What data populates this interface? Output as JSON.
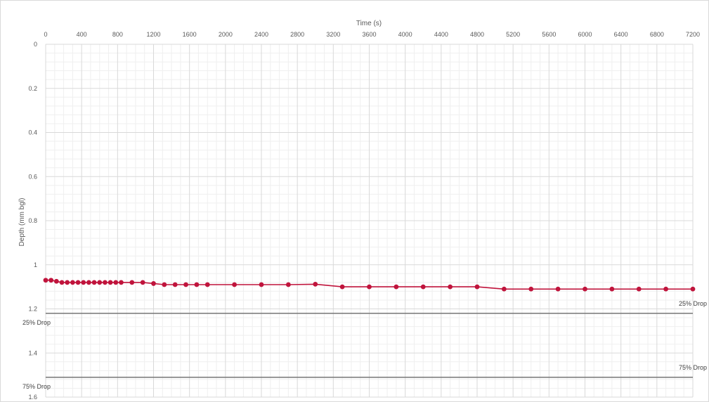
{
  "chart_data": {
    "type": "line",
    "title": "",
    "xlabel": "Time (s)",
    "ylabel": "Depth (mm bgl)",
    "x_axis_position": "top",
    "y_axis_reversed": true,
    "xlim": [
      0,
      7200
    ],
    "ylim": [
      0,
      1.6
    ],
    "x_ticks": [
      "0",
      "400",
      "800",
      "1200",
      "1600",
      "2000",
      "2400",
      "2800",
      "3200",
      "3600",
      "4000",
      "4400",
      "4800",
      "5200",
      "5600",
      "6000",
      "6400",
      "6800",
      "7200"
    ],
    "y_ticks": [
      "0",
      "0.2",
      "0.4",
      "0.6",
      "0.8",
      "1",
      "1.2",
      "1.4",
      "1.6"
    ],
    "grid": "major and minor",
    "series": [
      {
        "color": "#C0143C",
        "marker": "circle",
        "points": [
          [
            0,
            1.07
          ],
          [
            60,
            1.07
          ],
          [
            120,
            1.075
          ],
          [
            180,
            1.08
          ],
          [
            240,
            1.08
          ],
          [
            300,
            1.08
          ],
          [
            360,
            1.08
          ],
          [
            420,
            1.08
          ],
          [
            480,
            1.08
          ],
          [
            540,
            1.08
          ],
          [
            600,
            1.08
          ],
          [
            660,
            1.08
          ],
          [
            720,
            1.08
          ],
          [
            780,
            1.08
          ],
          [
            840,
            1.08
          ],
          [
            960,
            1.08
          ],
          [
            1080,
            1.08
          ],
          [
            1200,
            1.085
          ],
          [
            1320,
            1.09
          ],
          [
            1440,
            1.09
          ],
          [
            1560,
            1.09
          ],
          [
            1680,
            1.09
          ],
          [
            1800,
            1.09
          ],
          [
            2100,
            1.09
          ],
          [
            2400,
            1.09
          ],
          [
            2700,
            1.09
          ],
          [
            3000,
            1.088
          ],
          [
            3300,
            1.1
          ],
          [
            3600,
            1.1
          ],
          [
            3900,
            1.1
          ],
          [
            4200,
            1.1
          ],
          [
            4500,
            1.1
          ],
          [
            4800,
            1.1
          ],
          [
            5100,
            1.11
          ],
          [
            5400,
            1.11
          ],
          [
            5700,
            1.11
          ],
          [
            6000,
            1.11
          ],
          [
            6300,
            1.11
          ],
          [
            6600,
            1.11
          ],
          [
            6900,
            1.11
          ],
          [
            7200,
            1.11
          ]
        ]
      }
    ],
    "reference_lines": [
      {
        "y": 1.22,
        "color": "#7F7F7F",
        "label_left": "25% Drop",
        "label_right": "25% Drop"
      },
      {
        "y": 1.51,
        "color": "#7F7F7F",
        "label_left": "75% Drop",
        "label_right": "75% Drop"
      }
    ]
  }
}
